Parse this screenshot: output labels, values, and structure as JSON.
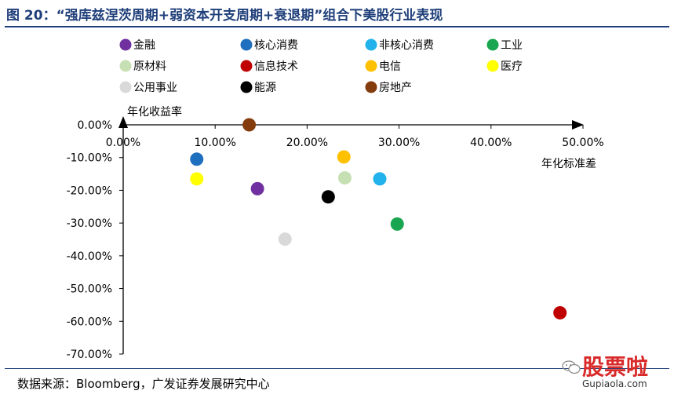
{
  "title": "图 20：“强库兹涅茨周期+弱资本开支周期+衰退期”组合下美股行业表现",
  "source": "数据来源：Bloomberg，广发证券发展研究中心",
  "watermark": {
    "text": "股票啦",
    "url": "Gupiaola.com"
  },
  "chart_data": {
    "type": "scatter",
    "title": "图 20：“强库兹涅茨周期+弱资本开支周期+衰退期”组合下美股行业表现",
    "xlabel": "年化标准差",
    "ylabel": "年化收益率",
    "xlim": [
      0,
      50
    ],
    "ylim": [
      -70,
      0
    ],
    "x_ticks": [
      "0.00%",
      "10.00%",
      "20.00%",
      "30.00%",
      "40.00%",
      "50.00%"
    ],
    "y_ticks": [
      "0.00%",
      "-10.00%",
      "-20.00%",
      "-30.00%",
      "-40.00%",
      "-50.00%",
      "-60.00%",
      "-70.00%"
    ],
    "grid": false,
    "legend_position": "top",
    "series": [
      {
        "name": "金融",
        "color": "#7030a0",
        "x": 14.6,
        "y": -19.5
      },
      {
        "name": "核心消费",
        "color": "#1f6fbf",
        "x": 8.0,
        "y": -10.5
      },
      {
        "name": "非核心消费",
        "color": "#21b2ec",
        "x": 27.9,
        "y": -16.5
      },
      {
        "name": "工业",
        "color": "#1aa550",
        "x": 29.8,
        "y": -30.3
      },
      {
        "name": "原材料",
        "color": "#c6e0b4",
        "x": 24.1,
        "y": -16.2
      },
      {
        "name": "信息技术",
        "color": "#c00000",
        "x": 47.5,
        "y": -57.4
      },
      {
        "name": "电信",
        "color": "#ffc000",
        "x": 24.0,
        "y": -9.8
      },
      {
        "name": "医疗",
        "color": "#ffff00",
        "x": 8.0,
        "y": -16.5
      },
      {
        "name": "公用事业",
        "color": "#d9d9d9",
        "x": 17.6,
        "y": -34.9
      },
      {
        "name": "能源",
        "color": "#000000",
        "x": 22.3,
        "y": -22.0
      },
      {
        "name": "房地产",
        "color": "#843c0c",
        "x": 13.7,
        "y": 0.0
      }
    ]
  }
}
